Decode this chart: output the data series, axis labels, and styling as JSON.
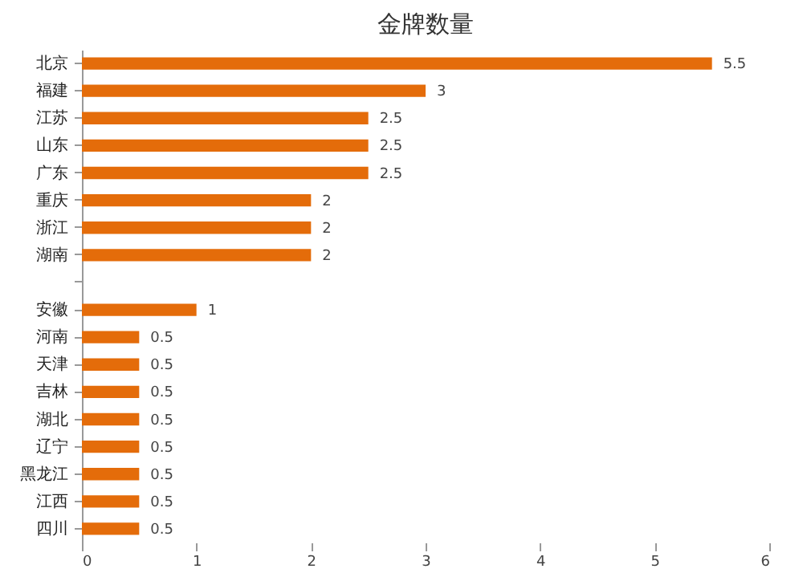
{
  "chart_data": {
    "type": "bar",
    "orientation": "horizontal",
    "title": "金牌数量",
    "categories": [
      "北京",
      "福建",
      "江苏",
      "山东",
      "广东",
      "重庆",
      "浙江",
      "湖南",
      null,
      "安徽",
      "河南",
      "天津",
      "吉林",
      "湖北",
      "辽宁",
      "黑龙江",
      "江西",
      "四川"
    ],
    "values": [
      5.5,
      3,
      2.5,
      2.5,
      2.5,
      2,
      2,
      2,
      null,
      1,
      0.5,
      0.5,
      0.5,
      0.5,
      0.5,
      0.5,
      0.5,
      0.5
    ],
    "color": "#e46c0a",
    "xlim": [
      0,
      6
    ],
    "xticks": [
      0,
      1,
      2,
      3,
      4,
      5,
      6
    ],
    "data_labels": true,
    "grid": false
  }
}
